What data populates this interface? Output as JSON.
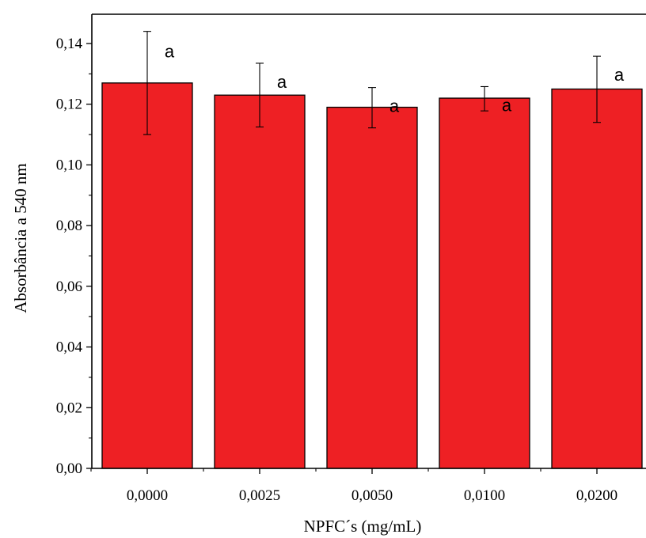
{
  "chart_data": {
    "type": "bar",
    "title": "",
    "xlabel": "NPFC´s (mg/mL)",
    "ylabel": "Absorbância a 540 nm",
    "categories": [
      "0,0000",
      "0,0025",
      "0,0050",
      "0,0100",
      "0,0200"
    ],
    "values": [
      0.127,
      0.123,
      0.119,
      0.122,
      0.125
    ],
    "error_upper": [
      0.144,
      0.1335,
      0.1255,
      0.1258,
      0.1358
    ],
    "error_lower": [
      0.11,
      0.1125,
      0.1122,
      0.1178,
      0.114
    ],
    "significance_labels": [
      "a",
      "a",
      "a",
      "a",
      "a"
    ],
    "ylim": [
      0,
      0.15
    ],
    "yticks": [
      0.0,
      0.02,
      0.04,
      0.06,
      0.08,
      0.1,
      0.12,
      0.14
    ],
    "ytick_labels": [
      "0,00",
      "0,02",
      "0,04",
      "0,06",
      "0,08",
      "0,10",
      "0,12",
      "0,14"
    ],
    "bar_color": "#ee2024",
    "grid": false,
    "legend": "none"
  }
}
